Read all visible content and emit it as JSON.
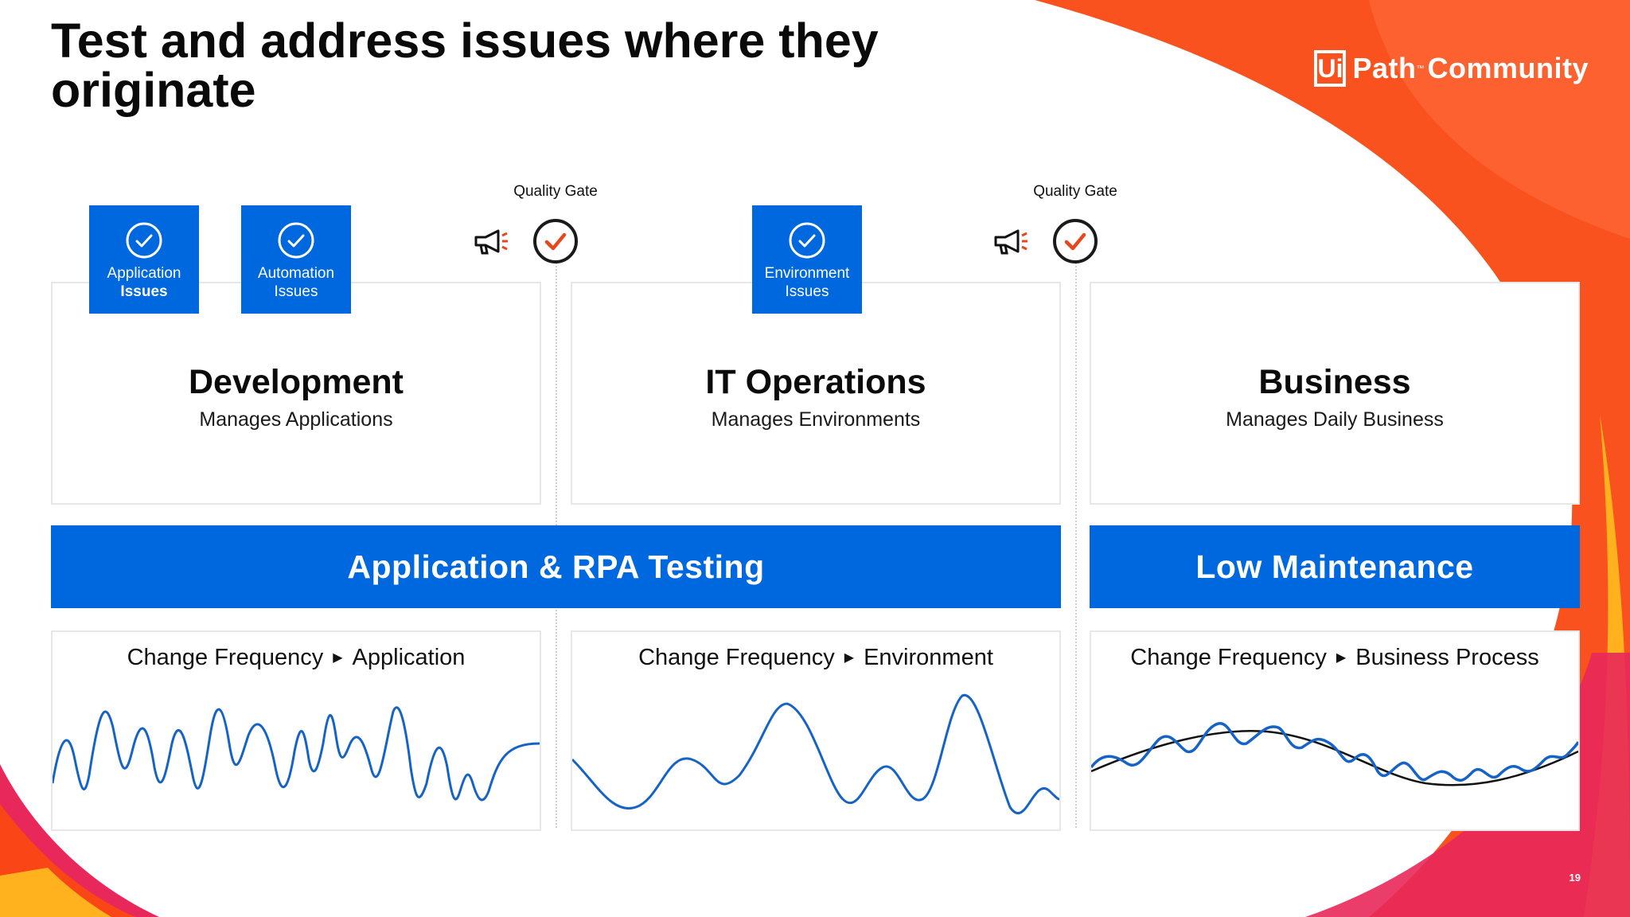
{
  "slide": {
    "title": "Test and address issues where they originate",
    "page_number": "19"
  },
  "logo": {
    "box": "Ui",
    "text": "Path",
    "tm": "™",
    "community": "Community"
  },
  "quality_gates": [
    {
      "label": "Quality Gate"
    },
    {
      "label": "Quality Gate"
    }
  ],
  "badges": [
    {
      "line1": "Application",
      "line2": "Issues"
    },
    {
      "line1": "Automation",
      "line2": "Issues"
    },
    {
      "line1": "Environment",
      "line2": "Issues"
    }
  ],
  "panels": [
    {
      "title": "Development",
      "subtitle": "Manages Applications"
    },
    {
      "title": "IT Operations",
      "subtitle": "Manages Environments"
    },
    {
      "title": "Business",
      "subtitle": "Manages Daily Business"
    }
  ],
  "bars": {
    "testing": "Application & RPA Testing",
    "maintenance": "Low Maintenance"
  },
  "frequency": [
    {
      "label": "Change Frequency",
      "target": "Application"
    },
    {
      "label": "Change Frequency",
      "target": "Environment"
    },
    {
      "label": "Change Frequency",
      "target": "Business Process"
    }
  ],
  "colors": {
    "accent_blue": "#0068de",
    "wave_blue": "#1563c6",
    "gate_check": "#e8471d",
    "brand_orange": "#fa4616",
    "brand_pink": "#e8285a",
    "brand_yellow": "#ffb21d"
  },
  "icons": {
    "badge": "check-circle-icon",
    "gate": "check-circle-icon",
    "announce": "megaphone-icon"
  }
}
